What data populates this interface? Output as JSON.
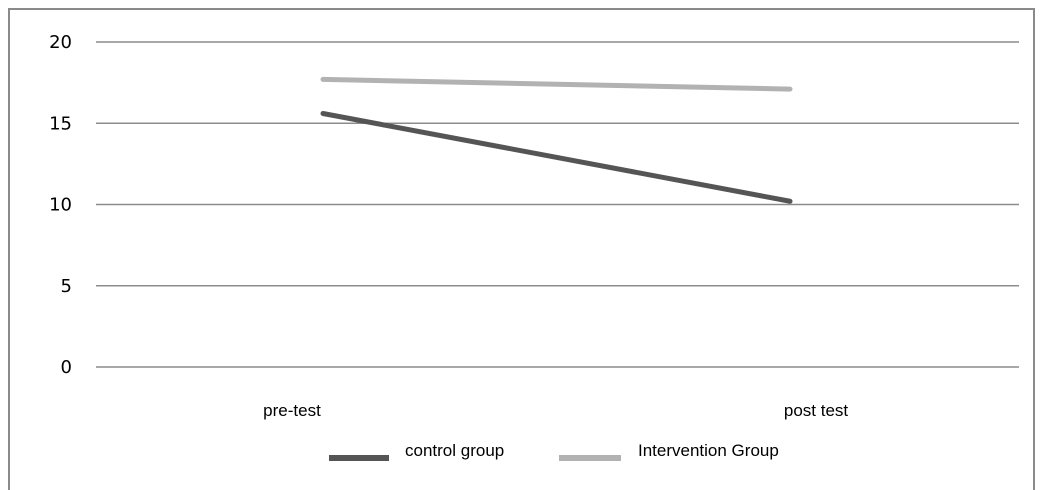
{
  "chart_data": {
    "type": "line",
    "title": "",
    "xlabel": "",
    "ylabel": "",
    "categories": [
      "pre-test",
      "post test"
    ],
    "ylim": [
      0,
      20
    ],
    "yticks": [
      0,
      5,
      10,
      15,
      20
    ],
    "grid": true,
    "legend_position": "bottom",
    "series": [
      {
        "name": "control group",
        "values": [
          15.6,
          10.2
        ],
        "color": "#555555"
      },
      {
        "name": "Intervention Group",
        "values": [
          17.7,
          17.1
        ],
        "color": "#b2b2b2"
      }
    ]
  }
}
